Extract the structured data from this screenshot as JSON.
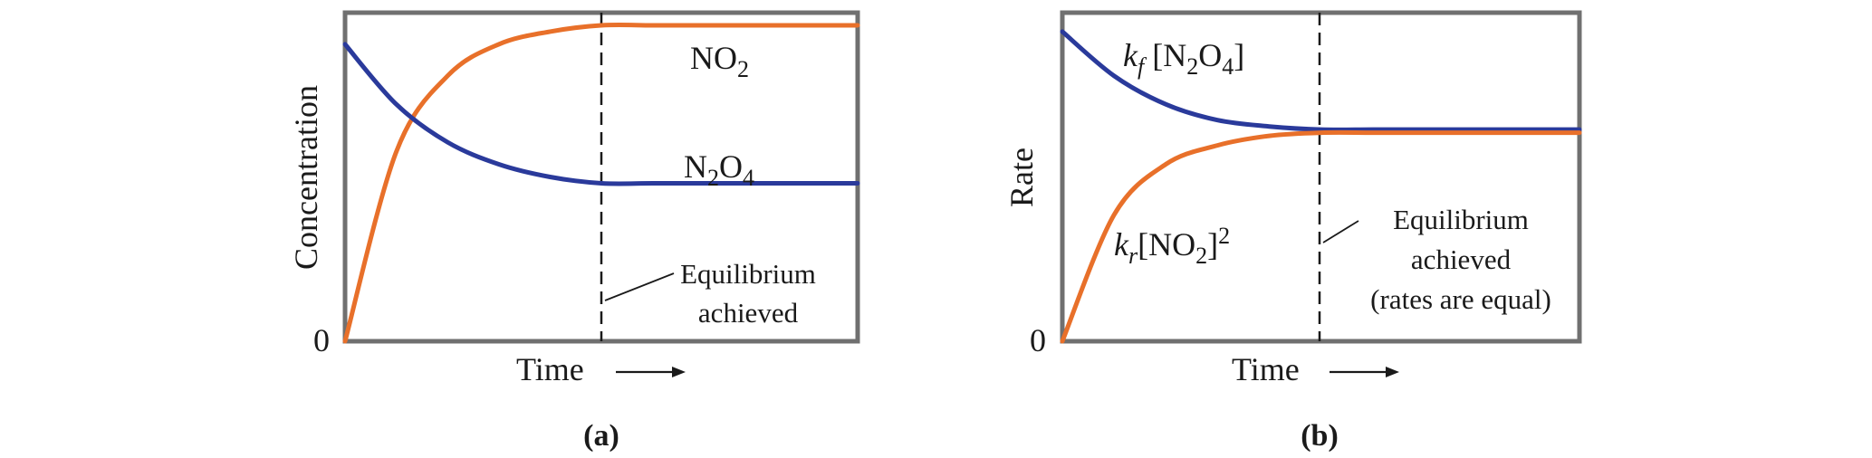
{
  "colors": {
    "orange": "#e8702a",
    "blue": "#2a3a9b",
    "frame": "#707070"
  },
  "chart_data": [
    {
      "type": "line",
      "panel_label": "(a)",
      "xlabel": "Time",
      "ylabel": "Concentration",
      "y_zero_label": "0",
      "x": [
        0,
        0.1,
        0.2,
        0.3,
        0.4,
        0.5,
        0.6,
        0.7,
        0.8,
        0.9,
        1.0
      ],
      "series": [
        {
          "name": "NO2",
          "color": "orange",
          "values": [
            0,
            0.6,
            0.84,
            0.94,
            0.98,
            1.0,
            1.0,
            1.0,
            1.0,
            1.0,
            1.0
          ]
        },
        {
          "name": "N2O4",
          "color": "blue",
          "values": [
            0.94,
            0.75,
            0.63,
            0.56,
            0.52,
            0.5,
            0.5,
            0.5,
            0.5,
            0.5,
            0.5
          ]
        }
      ],
      "equilibrium_x": 0.5,
      "annotation": [
        "Equilibrium",
        "achieved"
      ],
      "xlim": [
        0,
        1
      ],
      "ylim": [
        0,
        1.04
      ],
      "series_labels": {
        "NO2": {
          "main": "NO",
          "sub": "2"
        },
        "N2O4": {
          "a": "N",
          "sub1": "2",
          "b": "O",
          "sub2": "4"
        }
      }
    },
    {
      "type": "line",
      "panel_label": "(b)",
      "xlabel": "Time",
      "ylabel": "Rate",
      "y_zero_label": "0",
      "x": [
        0,
        0.1,
        0.2,
        0.3,
        0.4,
        0.5,
        0.6,
        0.7,
        0.8,
        0.9,
        1.0
      ],
      "series": [
        {
          "name": "kf [N2O4]",
          "color": "blue",
          "values": [
            0.98,
            0.84,
            0.75,
            0.7,
            0.68,
            0.67,
            0.67,
            0.67,
            0.67,
            0.67,
            0.67
          ]
        },
        {
          "name": "kr[NO2]^2",
          "color": "orange",
          "values": [
            0,
            0.4,
            0.56,
            0.62,
            0.65,
            0.66,
            0.66,
            0.66,
            0.66,
            0.66,
            0.66
          ]
        }
      ],
      "equilibrium_x": 0.5,
      "annotation": [
        "Equilibrium",
        "achieved",
        "(rates are equal)"
      ],
      "xlim": [
        0,
        1
      ],
      "ylim": [
        0,
        1.04
      ],
      "series_labels": {
        "kf": {
          "k": "k",
          "sub": "f",
          "rest": " [N",
          "sub1": "2",
          "b": "O",
          "sub2": "4",
          "end": "]"
        },
        "kr": {
          "k": "k",
          "sub": "r",
          "rest": "[NO",
          "sub1": "2",
          "end": "]",
          "sup": "2"
        }
      }
    }
  ]
}
